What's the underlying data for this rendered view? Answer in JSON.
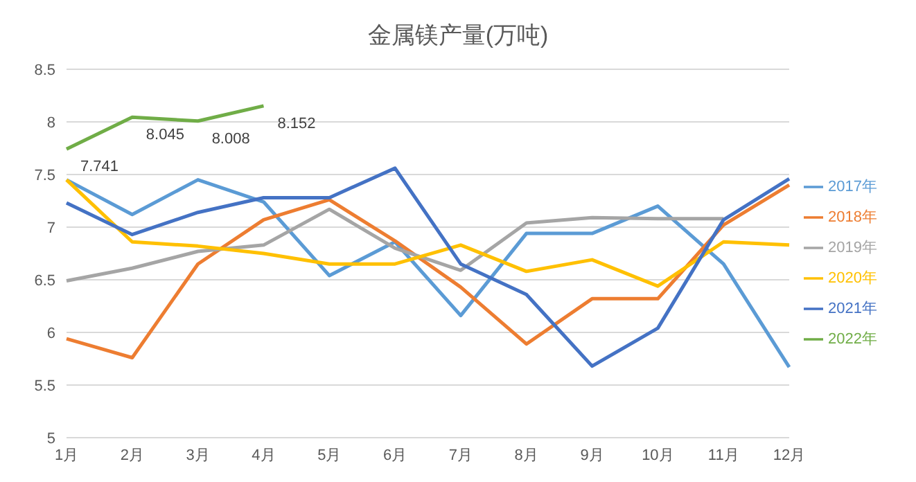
{
  "chart_data": {
    "type": "line",
    "title": "金属镁产量(万吨)",
    "categories": [
      "1月",
      "2月",
      "3月",
      "4月",
      "5月",
      "6月",
      "7月",
      "8月",
      "9月",
      "10月",
      "11月",
      "12月"
    ],
    "series": [
      {
        "name": "2017年",
        "color": "#5b9bd5",
        "values": [
          7.45,
          7.12,
          7.45,
          7.24,
          6.54,
          6.86,
          6.16,
          6.94,
          6.94,
          7.2,
          6.65,
          5.67
        ]
      },
      {
        "name": "2018年",
        "color": "#ed7d31",
        "values": [
          5.94,
          5.76,
          6.65,
          7.07,
          7.26,
          6.87,
          6.43,
          5.89,
          6.32,
          6.32,
          7.02,
          7.4
        ]
      },
      {
        "name": "2019年",
        "color": "#a5a5a5",
        "values": [
          6.49,
          6.61,
          6.77,
          6.83,
          7.17,
          6.8,
          6.59,
          7.04,
          7.09,
          7.08,
          7.08,
          null
        ]
      },
      {
        "name": "2020年",
        "color": "#ffc000",
        "values": [
          7.45,
          6.86,
          6.82,
          6.75,
          6.65,
          6.65,
          6.83,
          6.58,
          6.69,
          6.44,
          6.86,
          6.83
        ]
      },
      {
        "name": "2021年",
        "color": "#4472c4",
        "values": [
          7.23,
          6.93,
          7.14,
          7.28,
          7.28,
          7.56,
          6.65,
          6.36,
          5.68,
          6.04,
          7.07,
          7.46
        ]
      },
      {
        "name": "2022年",
        "color": "#70ad47",
        "values": [
          7.741,
          8.045,
          8.008,
          8.152,
          null,
          null,
          null,
          null,
          null,
          null,
          null,
          null
        ],
        "value_labels": [
          "7.741",
          "8.045",
          "8.008",
          "8.152",
          null,
          null,
          null,
          null,
          null,
          null,
          null,
          null
        ]
      }
    ],
    "ylim": [
      5,
      8.5
    ],
    "yticks": [
      5,
      5.5,
      6,
      6.5,
      7,
      7.5,
      8,
      8.5
    ],
    "grid": "y",
    "legend": "right",
    "marker": "none",
    "line_style": "solid"
  }
}
